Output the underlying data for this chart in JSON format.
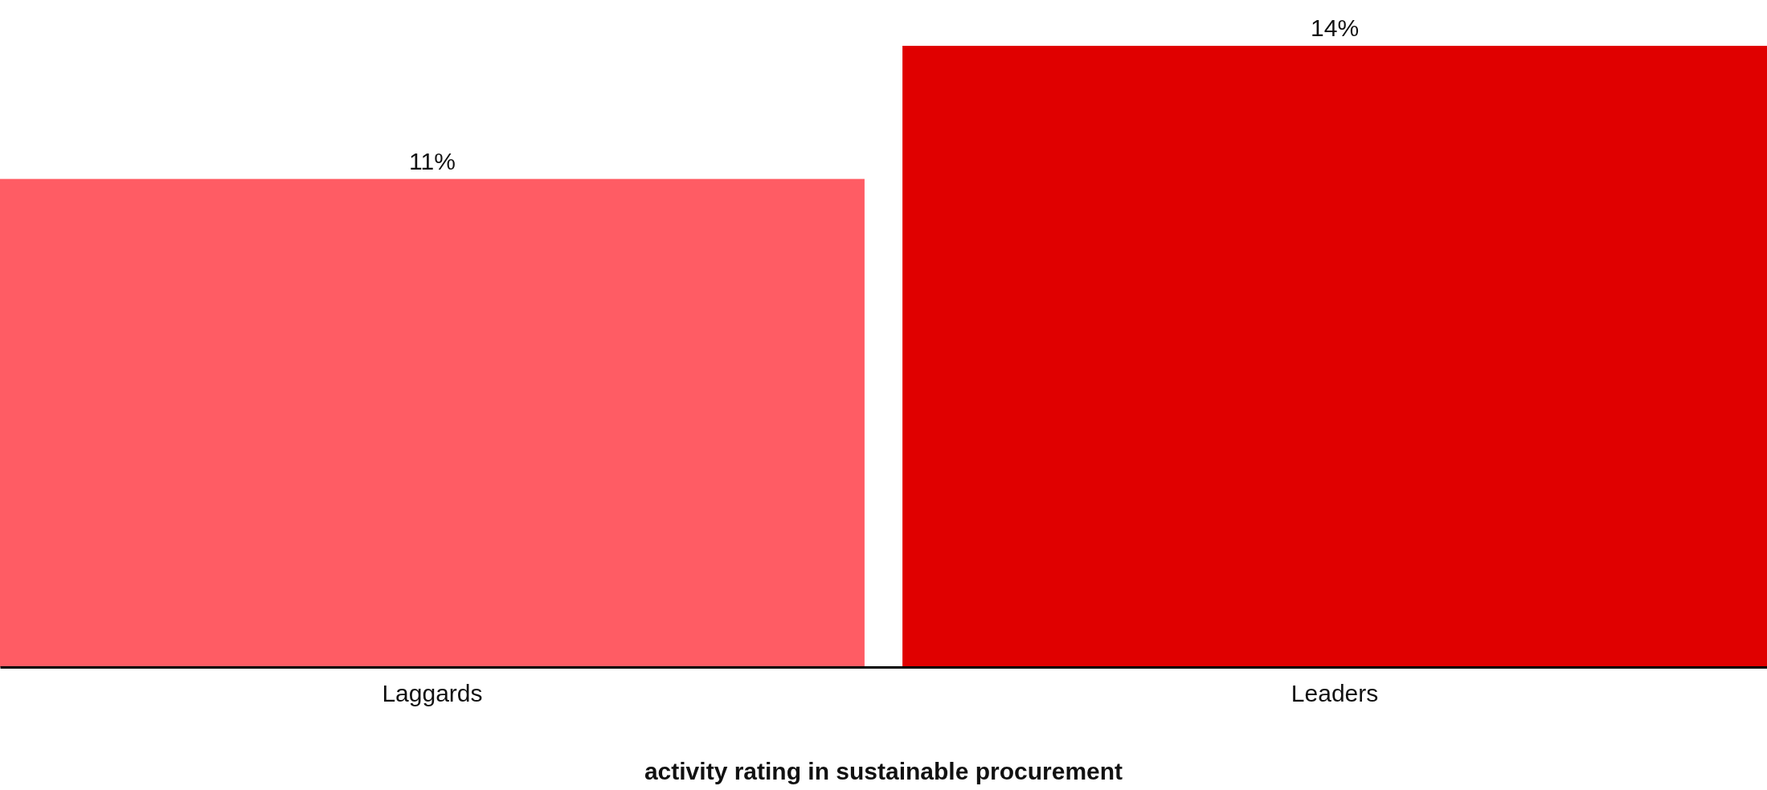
{
  "chart_data": {
    "type": "bar",
    "xlabel": "activity rating in sustainable procurement",
    "categories": [
      "Laggards",
      "Leaders"
    ],
    "values": [
      11,
      14
    ],
    "value_labels": [
      "11%",
      "14%"
    ],
    "colors": [
      "#ff5c64",
      "#e00000"
    ]
  }
}
